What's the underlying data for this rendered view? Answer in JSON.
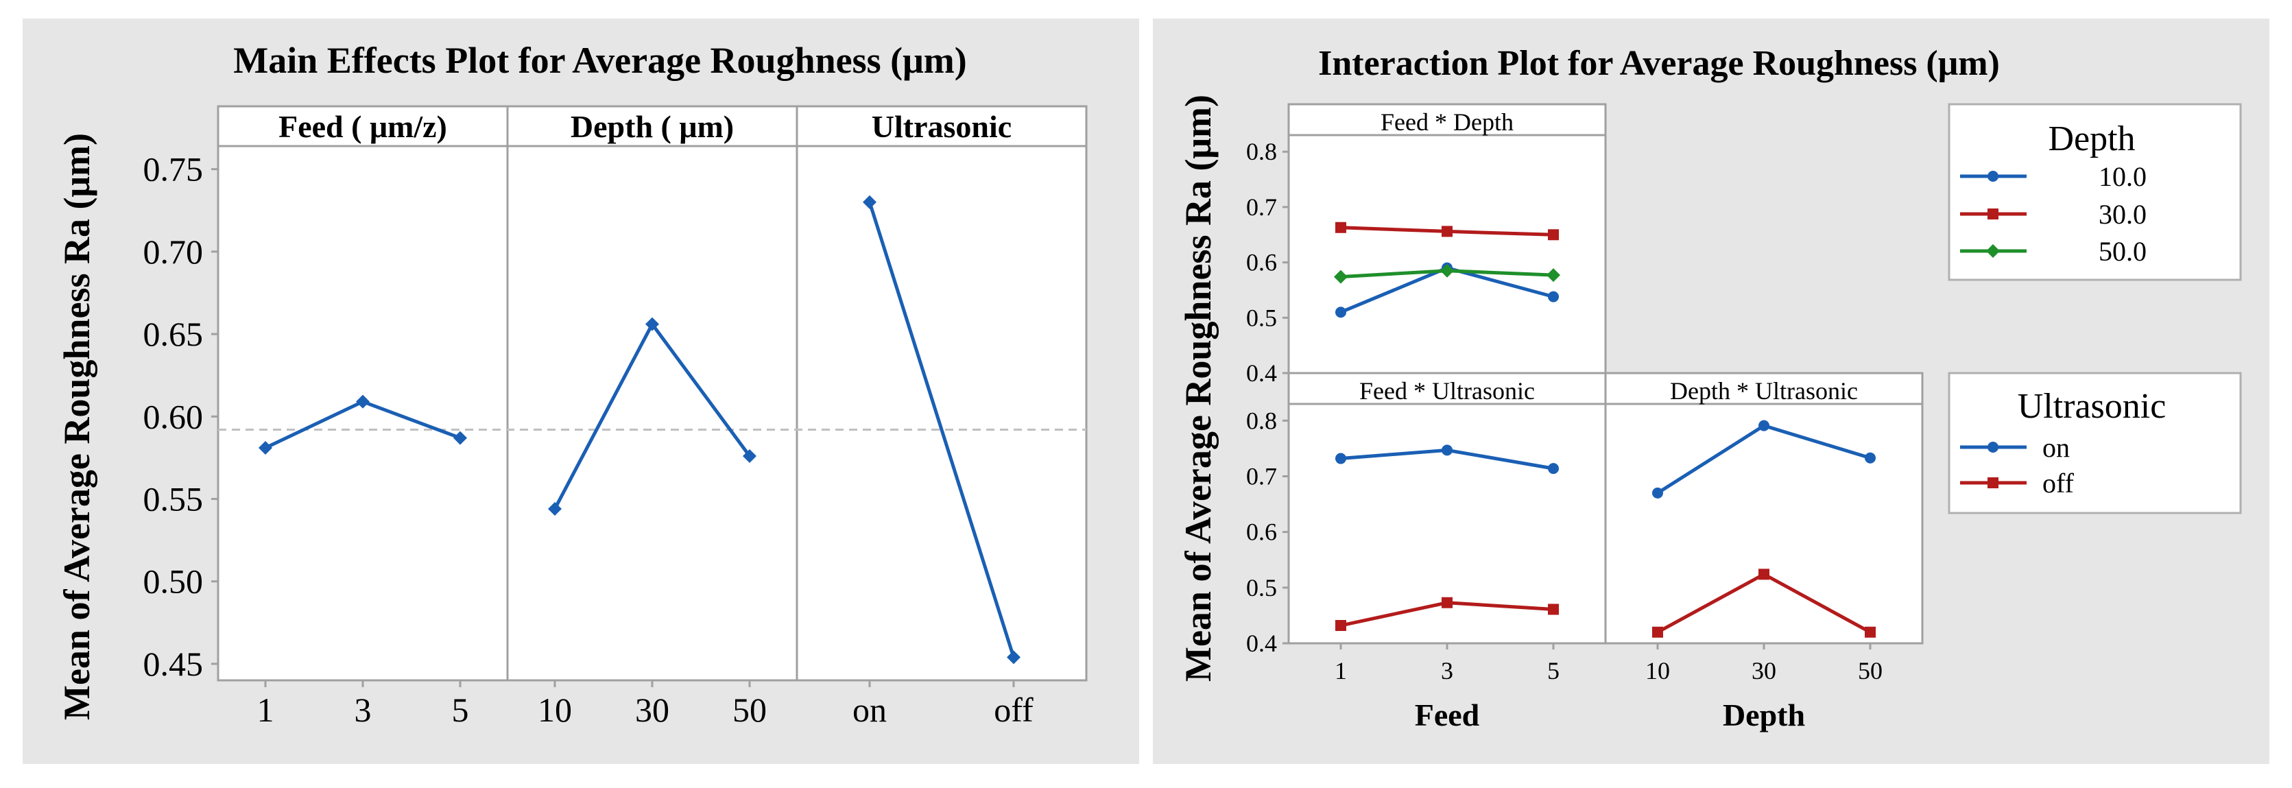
{
  "colors": {
    "panel_bg": "#e6e6e6",
    "series_blue": "#1a5fb4",
    "series_red": "#b31b1b",
    "series_green": "#1f8f2a",
    "ref_line": "#c0c0c0",
    "frame": "#a0a0a0"
  },
  "chart_data": [
    {
      "type": "line",
      "title": "Main Effects Plot for Average Roughness (μm)",
      "ylabel": "Mean of Average Roughness Ra (μm)",
      "ylim": [
        0.44,
        0.764
      ],
      "yticks": [
        "0.45",
        "0.50",
        "0.55",
        "0.60",
        "0.65",
        "0.70",
        "0.75"
      ],
      "grand_mean": 0.592,
      "panels": [
        {
          "title": "Feed ( μm/z)",
          "categories": [
            "1",
            "3",
            "5"
          ],
          "values": [
            0.581,
            0.609,
            0.587
          ]
        },
        {
          "title": "Depth ( μm)",
          "categories": [
            "10",
            "30",
            "50"
          ],
          "values": [
            0.544,
            0.656,
            0.576
          ]
        },
        {
          "title": "Ultrasonic",
          "categories": [
            "on",
            "off"
          ],
          "values": [
            0.73,
            0.454
          ]
        }
      ]
    },
    {
      "type": "line",
      "title": "Interaction Plot for Average Roughness (μm)",
      "ylabel": "Mean of Average Roughness Ra (μm)",
      "ylim": [
        0.4,
        0.83
      ],
      "yticks": [
        "0.4",
        "0.5",
        "0.6",
        "0.7",
        "0.8"
      ],
      "xlabels": [
        "Feed",
        "Depth"
      ],
      "panels": [
        {
          "title": "Feed * Depth",
          "categories": [
            "1",
            "3",
            "5"
          ],
          "series": [
            {
              "name": "10.0",
              "values": [
                0.51,
                0.59,
                0.538
              ]
            },
            {
              "name": "30.0",
              "values": [
                0.663,
                0.656,
                0.65
              ]
            },
            {
              "name": "50.0",
              "values": [
                0.574,
                0.585,
                0.577
              ]
            }
          ]
        },
        {
          "title": "Feed * Ultrasonic",
          "categories": [
            "1",
            "3",
            "5"
          ],
          "series": [
            {
              "name": "on",
              "values": [
                0.732,
                0.747,
                0.714
              ]
            },
            {
              "name": "off",
              "values": [
                0.432,
                0.473,
                0.461
              ]
            }
          ]
        },
        {
          "title": "Depth * Ultrasonic",
          "categories": [
            "10",
            "30",
            "50"
          ],
          "series": [
            {
              "name": "on",
              "values": [
                0.67,
                0.791,
                0.733
              ]
            },
            {
              "name": "off",
              "values": [
                0.42,
                0.524,
                0.42
              ]
            }
          ]
        }
      ],
      "legends": [
        {
          "title": "Depth",
          "entries": [
            "10.0",
            "30.0",
            "50.0"
          ]
        },
        {
          "title": "Ultrasonic",
          "entries": [
            "on",
            "off"
          ]
        }
      ]
    }
  ]
}
